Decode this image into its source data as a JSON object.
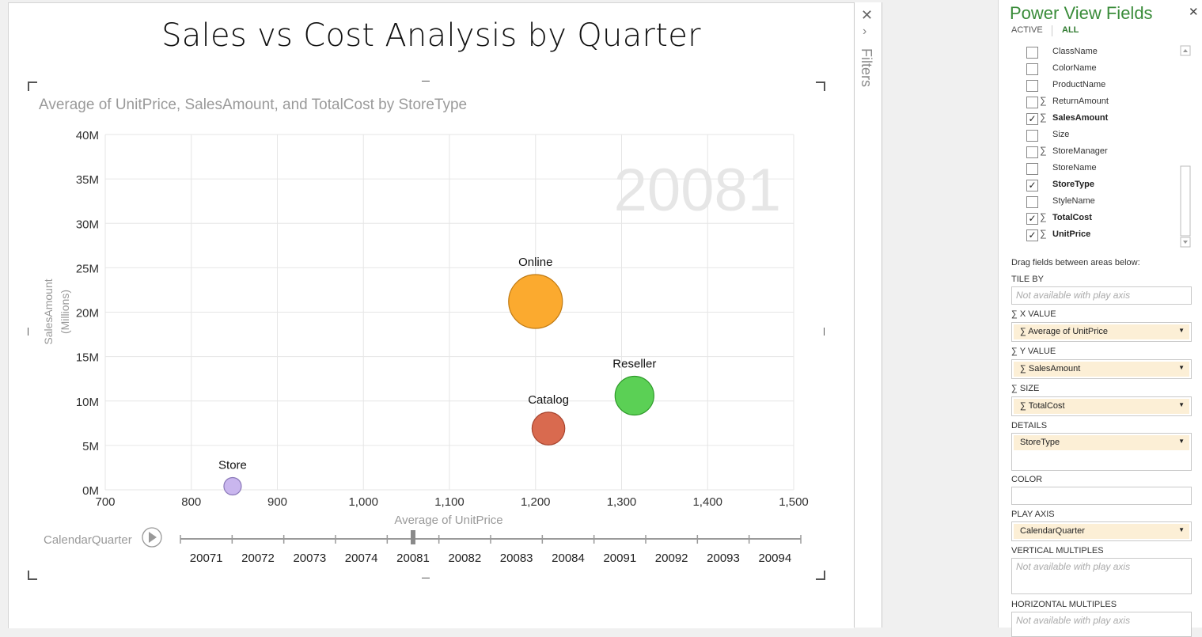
{
  "report": {
    "title": "Sales vs Cost Analysis by Quarter"
  },
  "visualization": {
    "subtitle": "Average of UnitPrice, SalesAmount, and TotalCost by StoreType",
    "play_axis": {
      "label": "CalendarQuarter",
      "quarters": [
        "20071",
        "20072",
        "20073",
        "20074",
        "20081",
        "20082",
        "20083",
        "20084",
        "20091",
        "20092",
        "20093",
        "20094"
      ],
      "current": "20081",
      "current_index": 4
    }
  },
  "chart_data": {
    "type": "scatter",
    "title": "",
    "xlabel": "Average of UnitPrice",
    "ylabel": "SalesAmount",
    "ylabel_units": "(Millions)",
    "xlim": [
      700,
      1500
    ],
    "ylim": [
      0,
      40
    ],
    "x_ticks": [
      "700",
      "800",
      "900",
      "1,000",
      "1,100",
      "1,200",
      "1,300",
      "1,400",
      "1,500"
    ],
    "x_tick_values": [
      700,
      800,
      900,
      1000,
      1100,
      1200,
      1300,
      1400,
      1500
    ],
    "y_ticks": [
      "0M",
      "5M",
      "10M",
      "15M",
      "20M",
      "25M",
      "30M",
      "35M",
      "40M"
    ],
    "y_tick_values": [
      0,
      5,
      10,
      15,
      20,
      25,
      30,
      35,
      40
    ],
    "watermark": "20081",
    "grid": true,
    "series": [
      {
        "name": "Online",
        "x": 1200,
        "y": 21.2,
        "size": 1.0,
        "color": "#FBAA2F",
        "stroke": "#C07A12"
      },
      {
        "name": "Reseller",
        "x": 1315,
        "y": 10.6,
        "size": 0.52,
        "color": "#5BD055",
        "stroke": "#2E9A2A"
      },
      {
        "name": "Catalog",
        "x": 1215,
        "y": 6.9,
        "size": 0.37,
        "color": "#D96A4F",
        "stroke": "#A8452F"
      },
      {
        "name": "Store",
        "x": 848,
        "y": 0.4,
        "size": 0.07,
        "color": "#C9B6EE",
        "stroke": "#8A78B8"
      }
    ]
  },
  "filters": {
    "label": "Filters",
    "close_icon": "close-icon",
    "expand_icon": "chevron-right-icon"
  },
  "field_pane": {
    "title": "Power View Fields",
    "tab_active": "ACTIVE",
    "tab_all": "ALL",
    "fields": [
      {
        "name": "ClassName",
        "checked": false,
        "sigma": false
      },
      {
        "name": "ColorName",
        "checked": false,
        "sigma": false
      },
      {
        "name": "ProductName",
        "checked": false,
        "sigma": false
      },
      {
        "name": "ReturnAmount",
        "checked": false,
        "sigma": true
      },
      {
        "name": "SalesAmount",
        "checked": true,
        "sigma": true
      },
      {
        "name": "Size",
        "checked": false,
        "sigma": false
      },
      {
        "name": "StoreManager",
        "checked": false,
        "sigma": true
      },
      {
        "name": "StoreName",
        "checked": false,
        "sigma": false
      },
      {
        "name": "StoreType",
        "checked": true,
        "sigma": false
      },
      {
        "name": "StyleName",
        "checked": false,
        "sigma": false
      },
      {
        "name": "TotalCost",
        "checked": true,
        "sigma": true
      },
      {
        "name": "UnitPrice",
        "checked": true,
        "sigma": true
      }
    ],
    "drag_hint": "Drag fields between areas below:",
    "areas": {
      "tile_by": {
        "label": "TILE BY",
        "placeholder": "Not available with play axis"
      },
      "x_value": {
        "label": "X VALUE",
        "value": "Average of UnitPrice"
      },
      "y_value": {
        "label": "Y VALUE",
        "value": "SalesAmount"
      },
      "size": {
        "label": "SIZE",
        "value": "TotalCost"
      },
      "details": {
        "label": "DETAILS",
        "value": "StoreType"
      },
      "color": {
        "label": "COLOR"
      },
      "play_axis": {
        "label": "PLAY AXIS",
        "value": "CalendarQuarter"
      },
      "vertical_multiples": {
        "label": "VERTICAL MULTIPLES",
        "placeholder": "Not available with play axis"
      },
      "horizontal_multiples": {
        "label": "HORIZONTAL MULTIPLES",
        "placeholder": "Not available with play axis"
      }
    }
  }
}
